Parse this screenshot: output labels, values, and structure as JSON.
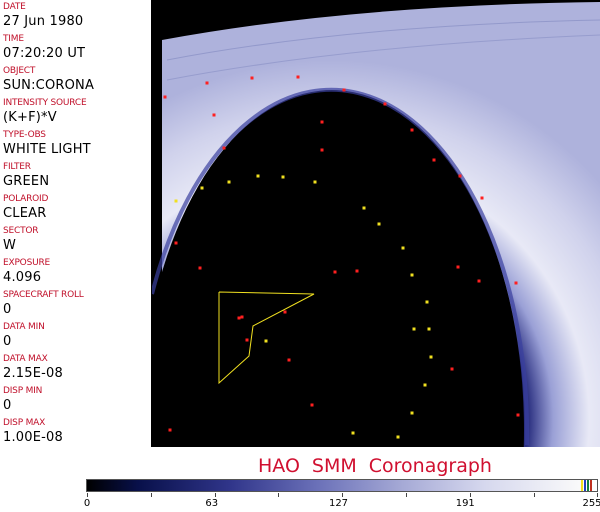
{
  "fields": [
    {
      "label": "DATE",
      "value": "27 Jun 1980"
    },
    {
      "label": "TIME",
      "value": "07:20:20 UT"
    },
    {
      "label": "OBJECT",
      "value": "SUN:CORONA"
    },
    {
      "label": "INTENSITY SOURCE",
      "value": "(K+F)*V"
    },
    {
      "label": "TYPE-OBS",
      "value": "WHITE LIGHT"
    },
    {
      "label": "FILTER",
      "value": "GREEN"
    },
    {
      "label": "POLAROID",
      "value": "CLEAR"
    },
    {
      "label": "SECTOR",
      "value": "W"
    },
    {
      "label": "EXPOSURE",
      "value": "4.096"
    },
    {
      "label": "SPACECRAFT ROLL",
      "value": "0"
    },
    {
      "label": "DATA MIN",
      "value": "0"
    },
    {
      "label": "DATA MAX",
      "value": "2.15E-08"
    },
    {
      "label": "DISP MIN",
      "value": "0"
    },
    {
      "label": "DISP MAX",
      "value": "1.00E-08"
    }
  ],
  "title": {
    "part1": "HAO",
    "part2": "SMM",
    "part3": "Coronagraph"
  },
  "colorbar": {
    "ticks": [
      "0",
      "63",
      "127",
      "191",
      "255"
    ],
    "min": 0,
    "max": 255,
    "end_colors": [
      "#f0e020",
      "#2040c0",
      "#108040",
      "#c03020"
    ]
  },
  "colors": {
    "label": "#c0102a",
    "marker_red": "#ff2020",
    "marker_yellow": "#f0e020",
    "corona": "#c8cae8"
  }
}
